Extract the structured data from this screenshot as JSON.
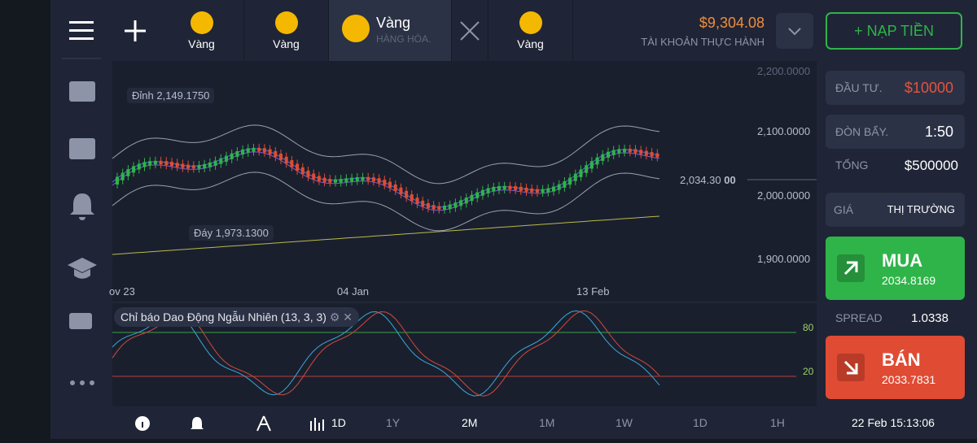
{
  "tabs": [
    {
      "label": "Vàng"
    },
    {
      "label": "Vàng"
    },
    {
      "label": "Vàng",
      "sub": "HÀNG HÓA."
    },
    {
      "label": "Vàng"
    }
  ],
  "account": {
    "balance": "$9,304.08",
    "type": "TÀI KHOẢN THỰC HÀNH",
    "deposit": "+ NẠP TIỀN"
  },
  "chart": {
    "price_labels": [
      "2,200.0000",
      "2,100.0000",
      "2,000.0000",
      "1,900.0000"
    ],
    "high": "Đỉnh 2,149.1750",
    "low": "Đáy 1,973.1300",
    "current": "2,034.30",
    "current_suffix": "00",
    "dates": [
      "ov 23",
      "04 Jan",
      "13 Feb"
    ],
    "indicator": "Chỉ báo Dao Động Ngẫu Nhiên (13, 3, 3)",
    "levels": [
      "80",
      "20"
    ]
  },
  "trade": {
    "invest_label": "ĐẦU TƯ.",
    "invest": "$10000",
    "leverage_label": "ĐÒN BẨY.",
    "leverage": "1:50",
    "total_label": "TỔNG",
    "total": "$500000",
    "price_label": "GIÁ",
    "price_mode": "THỊ TRƯỜNG",
    "buy": "MUA",
    "buy_price": "2034.8169",
    "spread_label": "SPREAD",
    "spread": "1.0338",
    "sell": "BÁN",
    "sell_price": "2033.7831"
  },
  "bottom": {
    "chart_period": "1D",
    "periods": [
      "1Y",
      "2M",
      "1M",
      "1W",
      "1D",
      "1H"
    ],
    "datetime": "22 Feb 15:13:06"
  }
}
